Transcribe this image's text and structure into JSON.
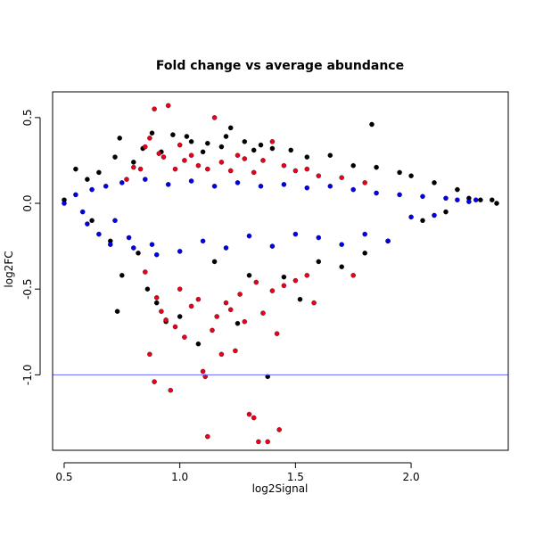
{
  "chart_data": {
    "type": "scatter",
    "title": "Fold change vs average abundance",
    "xlabel": "log2Signal",
    "ylabel": "log2FC",
    "xlim": [
      0.45,
      2.42
    ],
    "ylim": [
      -1.44,
      0.65
    ],
    "x_ticks": [
      0.5,
      1.0,
      1.5,
      2.0
    ],
    "x_tick_labels": [
      "0.5",
      "1.0",
      "1.5",
      "2.0"
    ],
    "y_ticks": [
      -1.0,
      -0.5,
      0.0,
      0.5
    ],
    "y_tick_labels": [
      "-1.0",
      "-0.5",
      "0.0",
      "0.5"
    ],
    "reference_line": {
      "y": -1.0,
      "color": "#6666ff"
    },
    "grid": false,
    "legend": "none",
    "series": [
      {
        "color": "#000000",
        "points": [
          [
            0.5,
            0.02
          ],
          [
            0.55,
            0.2
          ],
          [
            0.6,
            0.14
          ],
          [
            0.62,
            -0.1
          ],
          [
            0.65,
            0.18
          ],
          [
            0.7,
            -0.22
          ],
          [
            0.72,
            0.27
          ],
          [
            0.74,
            0.38
          ],
          [
            0.73,
            -0.63
          ],
          [
            0.75,
            -0.42
          ],
          [
            0.8,
            0.24
          ],
          [
            0.82,
            -0.29
          ],
          [
            0.84,
            0.32
          ],
          [
            0.86,
            -0.5
          ],
          [
            0.88,
            0.41
          ],
          [
            0.9,
            -0.58
          ],
          [
            0.92,
            0.3
          ],
          [
            0.94,
            -0.69
          ],
          [
            0.97,
            0.4
          ],
          [
            1.0,
            -0.66
          ],
          [
            1.03,
            0.39
          ],
          [
            1.05,
            0.36
          ],
          [
            1.08,
            -0.82
          ],
          [
            1.1,
            0.3
          ],
          [
            1.12,
            0.35
          ],
          [
            1.15,
            -0.34
          ],
          [
            1.18,
            0.33
          ],
          [
            1.2,
            0.39
          ],
          [
            1.22,
            0.44
          ],
          [
            1.25,
            -0.7
          ],
          [
            1.28,
            0.36
          ],
          [
            1.3,
            -0.42
          ],
          [
            1.32,
            0.31
          ],
          [
            1.35,
            0.34
          ],
          [
            1.38,
            -1.01
          ],
          [
            1.4,
            0.32
          ],
          [
            1.45,
            -0.43
          ],
          [
            1.48,
            0.31
          ],
          [
            1.52,
            -0.56
          ],
          [
            1.55,
            0.27
          ],
          [
            1.6,
            -0.34
          ],
          [
            1.65,
            0.28
          ],
          [
            1.7,
            -0.37
          ],
          [
            1.75,
            0.22
          ],
          [
            1.8,
            -0.29
          ],
          [
            1.83,
            0.46
          ],
          [
            1.85,
            0.21
          ],
          [
            1.9,
            -0.22
          ],
          [
            1.95,
            0.18
          ],
          [
            2.0,
            0.16
          ],
          [
            2.05,
            -0.1
          ],
          [
            2.1,
            0.12
          ],
          [
            2.15,
            -0.05
          ],
          [
            2.2,
            0.08
          ],
          [
            2.25,
            0.03
          ],
          [
            2.3,
            0.02
          ],
          [
            2.35,
            0.02
          ],
          [
            2.37,
            0.0
          ]
        ]
      },
      {
        "color": "#e8001c",
        "points": [
          [
            0.77,
            0.14
          ],
          [
            0.8,
            0.21
          ],
          [
            0.83,
            0.2
          ],
          [
            0.85,
            0.33
          ],
          [
            0.87,
            0.38
          ],
          [
            0.89,
            0.55
          ],
          [
            0.91,
            0.29
          ],
          [
            0.93,
            0.27
          ],
          [
            0.95,
            0.57
          ],
          [
            0.98,
            0.2
          ],
          [
            1.0,
            0.34
          ],
          [
            1.02,
            0.25
          ],
          [
            1.05,
            0.28
          ],
          [
            1.08,
            0.22
          ],
          [
            1.12,
            0.2
          ],
          [
            1.15,
            0.5
          ],
          [
            1.18,
            0.24
          ],
          [
            1.22,
            0.19
          ],
          [
            1.25,
            0.28
          ],
          [
            1.28,
            0.26
          ],
          [
            1.32,
            0.18
          ],
          [
            1.36,
            0.25
          ],
          [
            1.4,
            0.36
          ],
          [
            1.45,
            0.22
          ],
          [
            1.5,
            0.19
          ],
          [
            1.55,
            0.2
          ],
          [
            1.6,
            0.16
          ],
          [
            1.7,
            0.15
          ],
          [
            1.8,
            0.12
          ],
          [
            0.85,
            -0.4
          ],
          [
            0.87,
            -0.88
          ],
          [
            0.89,
            -1.04
          ],
          [
            0.9,
            -0.55
          ],
          [
            0.92,
            -0.63
          ],
          [
            0.94,
            -0.68
          ],
          [
            0.96,
            -1.09
          ],
          [
            0.98,
            -0.72
          ],
          [
            1.0,
            -0.5
          ],
          [
            1.02,
            -0.78
          ],
          [
            1.05,
            -0.6
          ],
          [
            1.08,
            -0.56
          ],
          [
            1.1,
            -0.98
          ],
          [
            1.11,
            -1.01
          ],
          [
            1.12,
            -1.36
          ],
          [
            1.14,
            -0.74
          ],
          [
            1.16,
            -0.66
          ],
          [
            1.18,
            -0.88
          ],
          [
            1.2,
            -0.58
          ],
          [
            1.22,
            -0.62
          ],
          [
            1.24,
            -0.86
          ],
          [
            1.26,
            -0.53
          ],
          [
            1.28,
            -0.69
          ],
          [
            1.3,
            -1.23
          ],
          [
            1.32,
            -1.25
          ],
          [
            1.33,
            -0.46
          ],
          [
            1.34,
            -1.39
          ],
          [
            1.36,
            -0.64
          ],
          [
            1.38,
            -1.39
          ],
          [
            1.4,
            -0.51
          ],
          [
            1.42,
            -0.76
          ],
          [
            1.43,
            -1.32
          ],
          [
            1.45,
            -0.48
          ],
          [
            1.5,
            -0.45
          ],
          [
            1.55,
            -0.42
          ],
          [
            1.58,
            -0.58
          ],
          [
            1.75,
            -0.42
          ]
        ]
      },
      {
        "color": "#0000ee",
        "points": [
          [
            0.5,
            0.0
          ],
          [
            0.55,
            0.05
          ],
          [
            0.58,
            -0.05
          ],
          [
            0.6,
            -0.12
          ],
          [
            0.62,
            0.08
          ],
          [
            0.65,
            -0.18
          ],
          [
            0.68,
            0.1
          ],
          [
            0.7,
            -0.24
          ],
          [
            0.72,
            -0.1
          ],
          [
            0.75,
            0.12
          ],
          [
            0.78,
            -0.2
          ],
          [
            0.8,
            -0.26
          ],
          [
            0.85,
            0.14
          ],
          [
            0.88,
            -0.24
          ],
          [
            0.9,
            -0.3
          ],
          [
            0.95,
            0.11
          ],
          [
            1.0,
            -0.28
          ],
          [
            1.05,
            0.13
          ],
          [
            1.1,
            -0.22
          ],
          [
            1.15,
            0.1
          ],
          [
            1.2,
            -0.26
          ],
          [
            1.25,
            0.12
          ],
          [
            1.3,
            -0.19
          ],
          [
            1.35,
            0.1
          ],
          [
            1.4,
            -0.25
          ],
          [
            1.45,
            0.11
          ],
          [
            1.5,
            -0.18
          ],
          [
            1.55,
            0.09
          ],
          [
            1.6,
            -0.2
          ],
          [
            1.65,
            0.1
          ],
          [
            1.7,
            -0.24
          ],
          [
            1.75,
            0.08
          ],
          [
            1.8,
            -0.18
          ],
          [
            1.85,
            0.06
          ],
          [
            1.9,
            -0.22
          ],
          [
            1.95,
            0.05
          ],
          [
            2.0,
            -0.08
          ],
          [
            2.05,
            0.04
          ],
          [
            2.1,
            -0.07
          ],
          [
            2.15,
            0.03
          ],
          [
            2.2,
            0.02
          ],
          [
            2.25,
            0.01
          ],
          [
            2.28,
            0.02
          ]
        ]
      }
    ]
  }
}
